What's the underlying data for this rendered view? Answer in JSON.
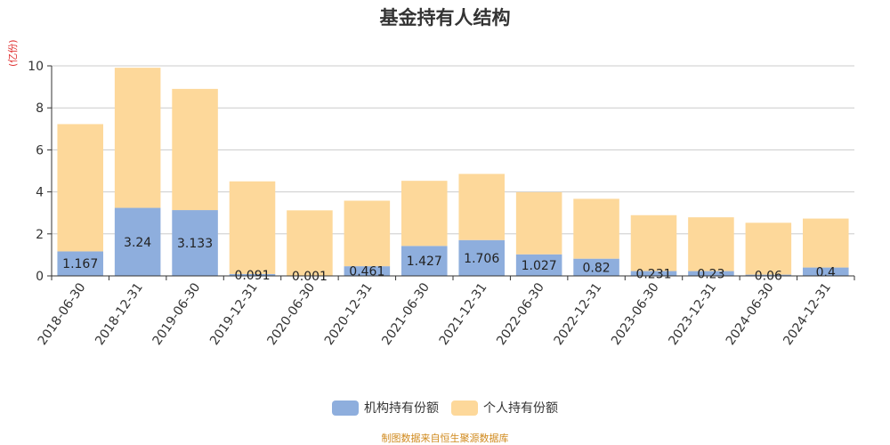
{
  "chart_data": {
    "type": "bar",
    "stacked": true,
    "title": "基金持有人结构",
    "unit_label": "(亿份)",
    "categories": [
      "2018-06-30",
      "2018-12-31",
      "2019-06-30",
      "2019-12-31",
      "2020-06-30",
      "2020-12-31",
      "2021-06-30",
      "2021-12-31",
      "2022-06-30",
      "2022-12-31",
      "2023-06-30",
      "2023-12-31",
      "2024-06-30",
      "2024-12-31"
    ],
    "series": [
      {
        "name": "机构持有份额",
        "color": "#8eaedd",
        "values": [
          1.167,
          3.24,
          3.133,
          0.091,
          0.001,
          0.461,
          1.427,
          1.706,
          1.027,
          0.82,
          0.231,
          0.23,
          0.06,
          0.4
        ]
      },
      {
        "name": "个人持有份额",
        "color": "#fdd89a",
        "values": [
          6.06,
          6.67,
          5.77,
          4.41,
          3.12,
          3.12,
          3.1,
          3.15,
          2.96,
          2.85,
          2.66,
          2.56,
          2.47,
          2.33
        ]
      }
    ],
    "ylim": [
      0,
      10
    ],
    "yticks": [
      0,
      2,
      4,
      6,
      8,
      10
    ],
    "grid": true,
    "legend_position": "bottom"
  },
  "source_text": "制图数据来自恒生聚源数据库"
}
